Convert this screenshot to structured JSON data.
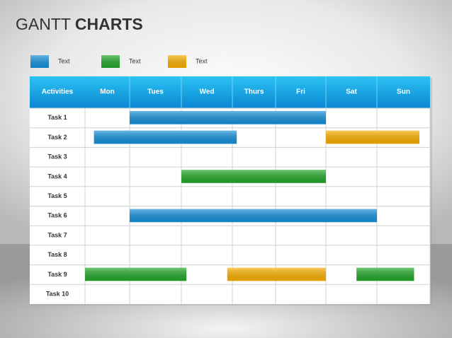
{
  "chart_data": {
    "type": "gantt",
    "title_light": "GANTT",
    "title_bold": "CHARTS",
    "header": "Activities",
    "categories": [
      "Mon",
      "Tues",
      "Wed",
      "Thurs",
      "Fri",
      "Sat",
      "Sun"
    ],
    "tasks": [
      "Task 1",
      "Task 2",
      "Task 3",
      "Task 4",
      "Task 5",
      "Task 6",
      "Task 7",
      "Task 8",
      "Task 9",
      "Task 10"
    ],
    "xlim": [
      0,
      7
    ],
    "series": [
      {
        "name": "Text",
        "color": "#1592dc",
        "ranges": [
          [
            [
              1,
              5
            ]
          ],
          [
            [
              0.2,
              3.1
            ]
          ],
          [],
          [],
          [],
          [
            [
              1,
              6
            ]
          ],
          [],
          [],
          [],
          []
        ]
      },
      {
        "name": "Text",
        "color": "#23a92a",
        "ranges": [
          [],
          [],
          [],
          [
            [
              2,
              5
            ]
          ],
          [],
          [],
          [],
          [],
          [
            [
              0,
              2.1
            ],
            [
              5.6,
              6.7
            ]
          ],
          []
        ]
      },
      {
        "name": "Text",
        "color": "#fbb000",
        "ranges": [
          [],
          [
            [
              5,
              6.8
            ]
          ],
          [],
          [],
          [],
          [],
          [],
          [],
          [
            [
              2.9,
              5
            ]
          ],
          []
        ]
      }
    ]
  }
}
